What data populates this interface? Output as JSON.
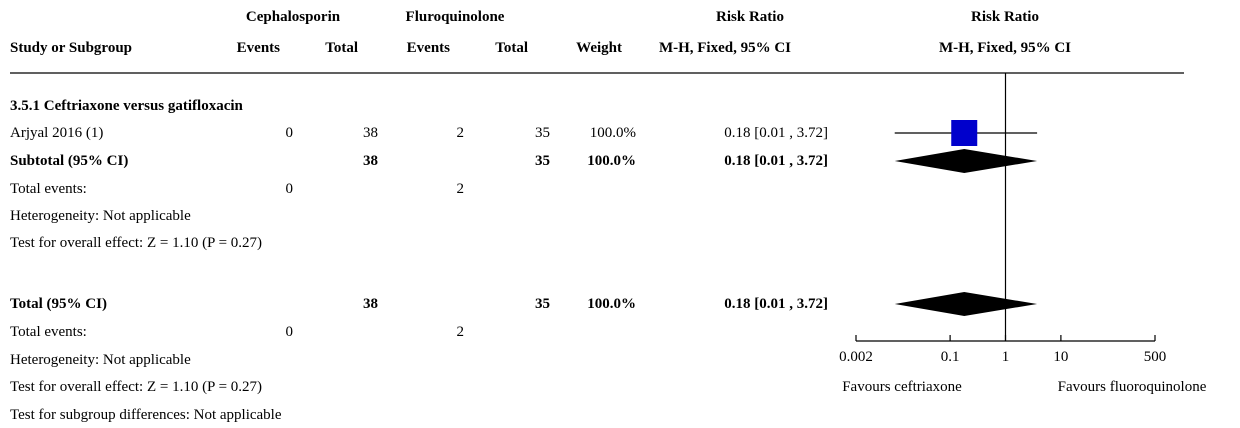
{
  "header": {
    "group1": "Cephalosporin",
    "group2": "Fluroquinolone",
    "rr_top": "Risk Ratio",
    "rr_plot_top": "Risk Ratio",
    "study_col": "Study or Subgroup",
    "events1": "Events",
    "total1": "Total",
    "events2": "Events",
    "total2": "Total",
    "weight": "Weight",
    "rr_method": "M-H, Fixed, 95% CI",
    "rr_plot_method": "M-H, Fixed, 95% CI"
  },
  "subgroup": {
    "title": "3.5.1 Ceftriaxone versus gatifloxacin",
    "study": {
      "name": "Arjyal 2016 (1)",
      "events1": "0",
      "total1": "38",
      "events2": "2",
      "total2": "35",
      "weight": "100.0%",
      "ci": "0.18 [0.01 , 3.72]"
    },
    "subtotal": {
      "label": "Subtotal (95% CI)",
      "total1": "38",
      "total2": "35",
      "weight": "100.0%",
      "ci": "0.18 [0.01 , 3.72]"
    },
    "total_events_label": "Total events:",
    "total_events1": "0",
    "total_events2": "2",
    "heterogeneity": "Heterogeneity: Not applicable",
    "overall_effect": "Test for overall effect: Z = 1.10 (P = 0.27)"
  },
  "total": {
    "label": "Total (95% CI)",
    "total1": "38",
    "total2": "35",
    "weight": "100.0%",
    "ci": "0.18 [0.01 , 3.72]",
    "total_events_label": "Total events:",
    "total_events1": "0",
    "total_events2": "2",
    "heterogeneity": "Heterogeneity: Not applicable",
    "overall_effect": "Test for overall effect: Z = 1.10 (P = 0.27)",
    "subgroup_diff": "Test for subgroup differences: Not applicable"
  },
  "chart_data": {
    "type": "forest",
    "scale": "log",
    "xlim": [
      0.002,
      500
    ],
    "ticks": [
      {
        "value": 0.002,
        "label": "0.002"
      },
      {
        "value": 0.1,
        "label": "0.1"
      },
      {
        "value": 1,
        "label": "1"
      },
      {
        "value": 10,
        "label": "10"
      },
      {
        "value": 500,
        "label": "500"
      }
    ],
    "null_value": 1,
    "favours_left": "Favours ceftriaxone",
    "favours_right": "Favours fluoroquinolone",
    "study_points": [
      {
        "rr": 0.18,
        "lower": 0.01,
        "upper": 3.72,
        "weight": 100.0,
        "color": "#0000cc"
      }
    ],
    "diamonds": [
      {
        "rr": 0.18,
        "lower": 0.01,
        "upper": 3.72
      },
      {
        "rr": 0.18,
        "lower": 0.01,
        "upper": 3.72
      }
    ]
  }
}
